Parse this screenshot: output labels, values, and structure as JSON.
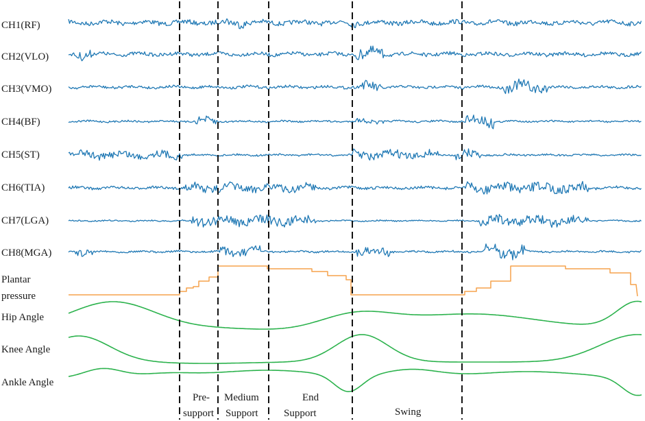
{
  "channels": [
    {
      "label": "CH1(RF)",
      "type": "emg"
    },
    {
      "label": "CH2(VLO)",
      "type": "emg"
    },
    {
      "label": "CH3(VMO)",
      "type": "emg"
    },
    {
      "label": "CH4(BF)",
      "type": "emg"
    },
    {
      "label": "CH5(ST)",
      "type": "emg"
    },
    {
      "label": "CH6(TIA)",
      "type": "emg"
    },
    {
      "label": "CH7(LGA)",
      "type": "emg"
    },
    {
      "label": "CH8(MGA)",
      "type": "emg"
    }
  ],
  "pressure": {
    "label_line1": "Plantar",
    "label_line2": "pressure"
  },
  "angles": [
    {
      "label": "Hip Angle"
    },
    {
      "label": "Knee Angle"
    },
    {
      "label": "Ankle Angle"
    }
  ],
  "phases": [
    {
      "line1": "Pre-",
      "line2": "support"
    },
    {
      "line1": "Medium",
      "line2": "Support"
    },
    {
      "line1": "End",
      "line2": "Support"
    },
    {
      "line1": "Swing",
      "line2": ""
    }
  ],
  "colors": {
    "emg": "#1f78b4",
    "pressure": "#f5a24b",
    "angle": "#2bb24c",
    "divider": "#111111",
    "text": "#1a1a1a"
  }
}
